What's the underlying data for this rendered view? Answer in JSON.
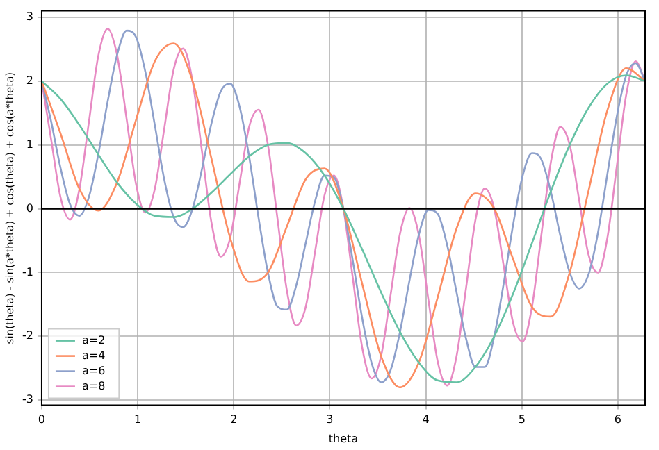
{
  "chart_data": {
    "type": "line",
    "xlabel": "theta",
    "ylabel": "sin(theta) - sin(a*theta) + cos(theta) + cos(a*theta)",
    "xlim": [
      0,
      6.283
    ],
    "xticks": [
      0,
      1,
      2,
      3,
      4,
      5,
      6
    ],
    "ylim": [
      -3.08,
      3.1
    ],
    "yticks": [
      -3,
      -2,
      -1,
      0,
      1,
      2,
      3
    ],
    "grid": true,
    "legend": "lower left",
    "marker": "none",
    "line_style": "solid",
    "ref_lines": [
      {
        "axis": "y",
        "value": 0,
        "color": "#000000"
      }
    ],
    "series": [
      {
        "name": "a=2",
        "color": "#66c2a5",
        "x": [
          0,
          0.196,
          0.393,
          0.589,
          0.785,
          0.982,
          1.178,
          1.374,
          1.571,
          1.767,
          1.963,
          2.16,
          2.356,
          2.553,
          2.749,
          2.945,
          3.142,
          3.338,
          3.534,
          3.731,
          3.927,
          4.123,
          4.32,
          4.516,
          4.712,
          4.909,
          5.105,
          5.301,
          5.498,
          5.694,
          5.89,
          6.087,
          6.283
        ],
        "values": [
          2,
          1.72,
          1.31,
          0.85,
          0.41,
          0.08,
          -0.11,
          -0.13,
          0,
          0.25,
          0.54,
          0.82,
          1,
          1.03,
          0.87,
          0.52,
          0,
          -0.64,
          -1.31,
          -1.93,
          -2.41,
          -2.69,
          -2.72,
          -2.48,
          -2,
          -1.33,
          -0.54,
          0.27,
          1,
          1.58,
          1.96,
          2.09,
          2
        ]
      },
      {
        "name": "a=4",
        "color": "#fc8d62",
        "x": [
          0,
          0.196,
          0.393,
          0.589,
          0.785,
          0.982,
          1.178,
          1.374,
          1.571,
          1.767,
          1.963,
          2.16,
          2.356,
          2.553,
          2.749,
          2.945,
          3.142,
          3.338,
          3.534,
          3.731,
          3.927,
          4.123,
          4.32,
          4.516,
          4.712,
          4.909,
          5.105,
          5.301,
          5.498,
          5.694,
          5.89,
          6.087,
          6.283
        ],
        "values": [
          2,
          1.18,
          0.31,
          -0.03,
          0.41,
          1.39,
          2.31,
          2.59,
          2,
          0.79,
          -0.46,
          -1.14,
          -1,
          -0.28,
          0.46,
          0.63,
          0,
          -1.18,
          -2.31,
          -2.8,
          -2.41,
          -1.39,
          -0.31,
          0.24,
          0,
          -0.79,
          -1.54,
          -1.69,
          -1,
          0.28,
          1.54,
          2.2,
          2
        ]
      },
      {
        "name": "a=6",
        "color": "#8da0cb",
        "x": [
          0,
          0.098,
          0.196,
          0.295,
          0.393,
          0.491,
          0.589,
          0.687,
          0.785,
          0.884,
          0.982,
          1.08,
          1.178,
          1.276,
          1.374,
          1.473,
          1.571,
          1.669,
          1.767,
          1.865,
          1.963,
          2.062,
          2.16,
          2.258,
          2.356,
          2.454,
          2.553,
          2.651,
          2.749,
          2.847,
          2.945,
          3.043,
          3.142,
          3.24,
          3.338,
          3.436,
          3.534,
          3.633,
          3.731,
          3.829,
          3.927,
          4.025,
          4.123,
          4.222,
          4.32,
          4.418,
          4.516,
          4.614,
          4.712,
          4.811,
          4.909,
          5.007,
          5.105,
          5.203,
          5.301,
          5.4,
          5.498,
          5.596,
          5.694,
          5.792,
          5.89,
          5.989,
          6.087,
          6.185,
          6.283
        ],
        "values": [
          2,
          1.37,
          0.64,
          0.07,
          -0.11,
          0.18,
          0.85,
          1.68,
          2.41,
          2.79,
          2.69,
          2.14,
          1.31,
          0.46,
          -0.13,
          -0.29,
          0,
          0.62,
          1.33,
          1.84,
          1.96,
          1.59,
          0.82,
          -0.14,
          -1,
          -1.53,
          -1.58,
          -1.2,
          -0.54,
          0.12,
          0.52,
          0.49,
          0,
          -0.82,
          -1.72,
          -2.42,
          -2.72,
          -2.53,
          -1.93,
          -1.13,
          -0.41,
          -0.02,
          -0.08,
          -0.57,
          -1.31,
          -2.03,
          -2.48,
          -2.48,
          -2,
          -1.17,
          -0.25,
          0.51,
          0.87,
          0.77,
          0.27,
          -0.42,
          -1,
          -1.25,
          -1.03,
          -0.38,
          0.54,
          1.45,
          2.09,
          2.28,
          2
        ]
      },
      {
        "name": "a=8",
        "color": "#e78ac3",
        "x": [
          0,
          0.098,
          0.196,
          0.295,
          0.393,
          0.491,
          0.589,
          0.687,
          0.785,
          0.884,
          0.982,
          1.08,
          1.178,
          1.276,
          1.374,
          1.473,
          1.571,
          1.669,
          1.767,
          1.865,
          1.963,
          2.062,
          2.16,
          2.258,
          2.356,
          2.454,
          2.553,
          2.651,
          2.749,
          2.847,
          2.945,
          3.043,
          3.142,
          3.24,
          3.338,
          3.436,
          3.534,
          3.633,
          3.731,
          3.829,
          3.927,
          4.025,
          4.123,
          4.222,
          4.32,
          4.418,
          4.516,
          4.614,
          4.712,
          4.811,
          4.909,
          5.007,
          5.105,
          5.203,
          5.301,
          5.4,
          5.498,
          5.596,
          5.694,
          5.792,
          5.89,
          5.989,
          6.087,
          6.185,
          6.283
        ],
        "values": [
          2,
          1.09,
          0.18,
          -0.17,
          0.31,
          1.35,
          2.39,
          2.82,
          2.41,
          1.41,
          0.39,
          -0.06,
          0.31,
          1.25,
          2.18,
          2.51,
          2,
          0.9,
          -0.21,
          -0.75,
          -0.46,
          0.41,
          1.28,
          1.55,
          1,
          -0.14,
          -1.28,
          -1.83,
          -1.54,
          -0.67,
          0.21,
          0.52,
          0,
          -1.09,
          -2.18,
          -2.66,
          -2.31,
          -1.35,
          -0.39,
          0.01,
          -0.41,
          -1.41,
          -2.39,
          -2.77,
          -2.31,
          -1.25,
          -0.18,
          0.32,
          0,
          -0.9,
          -1.79,
          -2.08,
          -1.54,
          -0.41,
          0.72,
          1.28,
          1,
          0.14,
          -0.72,
          -1,
          -0.46,
          0.67,
          1.79,
          2.31,
          2
        ]
      }
    ]
  }
}
